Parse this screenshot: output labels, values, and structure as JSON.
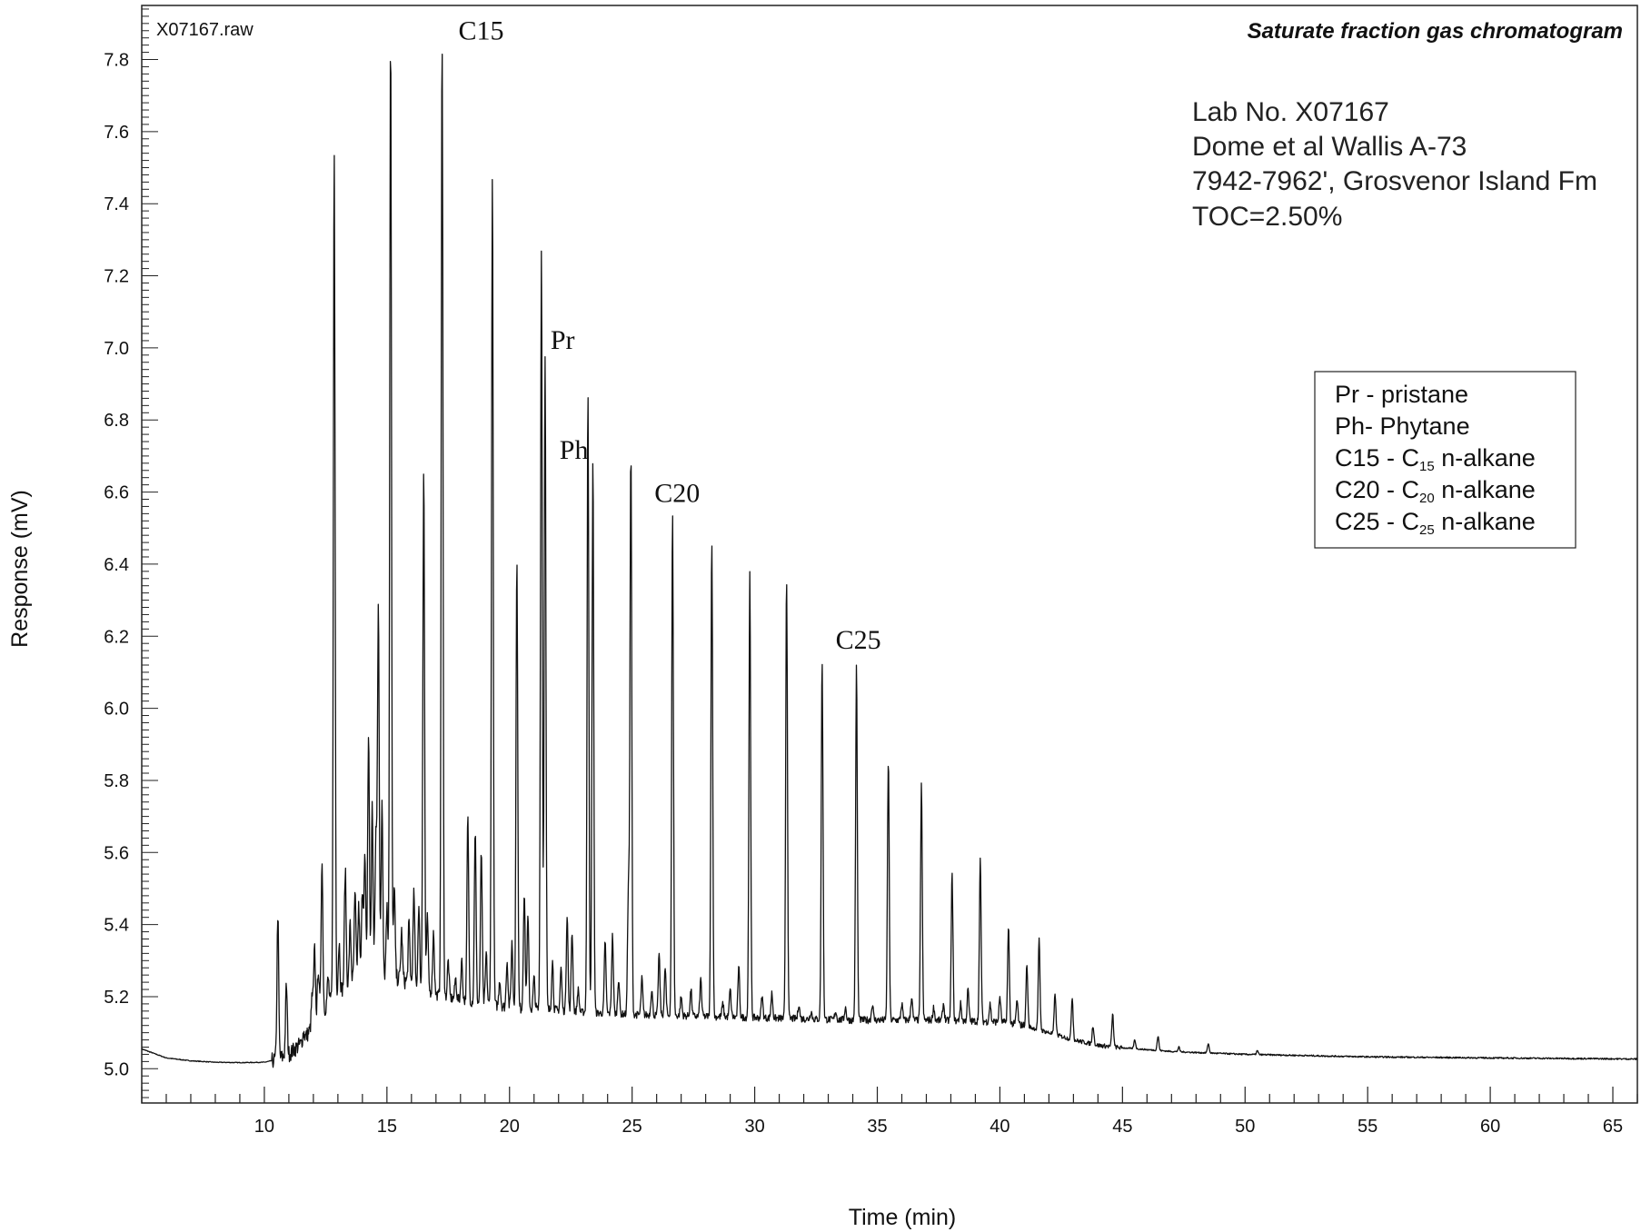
{
  "chart_data": {
    "type": "line",
    "title": "Saturate fraction gas chromatogram",
    "file_label": "X07167.raw",
    "xlabel": "Time (min)",
    "ylabel": "Response (mV)",
    "xlim": [
      5,
      66
    ],
    "ylim": [
      4.905,
      7.95
    ],
    "x_ticks": [
      10,
      15,
      20,
      25,
      30,
      35,
      40,
      45,
      50,
      55,
      60,
      65
    ],
    "y_ticks": [
      5.0,
      5.2,
      5.4,
      5.6,
      5.8,
      6.0,
      6.2,
      6.4,
      6.6,
      6.8,
      7.0,
      7.2,
      7.4,
      7.6,
      7.8
    ],
    "y_tick_labels": [
      "5.0",
      "5.2",
      "5.4",
      "5.6",
      "5.8",
      "6.0",
      "6.2",
      "6.4",
      "6.6",
      "6.8",
      "7.0",
      "7.2",
      "7.4",
      "7.6",
      "7.8"
    ],
    "baseline_points": [
      [
        5.0,
        5.055
      ],
      [
        6.0,
        5.03
      ],
      [
        7.0,
        5.022
      ],
      [
        8.0,
        5.018
      ],
      [
        9.0,
        5.017
      ],
      [
        10.0,
        5.018
      ],
      [
        10.5,
        5.025
      ],
      [
        11.0,
        5.04
      ],
      [
        11.5,
        5.07
      ],
      [
        12.0,
        5.12
      ],
      [
        12.5,
        5.17
      ],
      [
        13.0,
        5.21
      ],
      [
        13.5,
        5.24
      ],
      [
        14.0,
        5.25
      ],
      [
        14.5,
        5.255
      ],
      [
        15.0,
        5.255
      ],
      [
        15.5,
        5.25
      ],
      [
        16.0,
        5.235
      ],
      [
        16.5,
        5.22
      ],
      [
        17.0,
        5.205
      ],
      [
        18.0,
        5.19
      ],
      [
        19.0,
        5.18
      ],
      [
        20.0,
        5.17
      ],
      [
        22.0,
        5.16
      ],
      [
        25.0,
        5.15
      ],
      [
        28.0,
        5.145
      ],
      [
        31.0,
        5.14
      ],
      [
        34.0,
        5.135
      ],
      [
        37.0,
        5.135
      ],
      [
        40.0,
        5.13
      ],
      [
        41.0,
        5.12
      ],
      [
        42.0,
        5.1
      ],
      [
        43.0,
        5.08
      ],
      [
        44.0,
        5.065
      ],
      [
        45.0,
        5.058
      ],
      [
        46.0,
        5.053
      ],
      [
        47.0,
        5.048
      ],
      [
        48.0,
        5.045
      ],
      [
        50.0,
        5.04
      ],
      [
        55.0,
        5.033
      ],
      [
        60.0,
        5.03
      ],
      [
        66.0,
        5.027
      ]
    ],
    "peaks": [
      {
        "t": 10.55,
        "h": 5.43
      },
      {
        "t": 10.9,
        "h": 5.23
      },
      {
        "t": 11.6,
        "h": 5.1
      },
      {
        "t": 11.95,
        "h": 5.2
      },
      {
        "t": 12.05,
        "h": 5.33
      },
      {
        "t": 12.2,
        "h": 5.28
      },
      {
        "t": 12.35,
        "h": 5.58
      },
      {
        "t": 12.6,
        "h": 5.25
      },
      {
        "t": 12.85,
        "h": 7.54
      },
      {
        "t": 13.05,
        "h": 5.35
      },
      {
        "t": 13.3,
        "h": 5.55
      },
      {
        "t": 13.5,
        "h": 5.4
      },
      {
        "t": 13.7,
        "h": 5.48
      },
      {
        "t": 13.85,
        "h": 5.45
      },
      {
        "t": 14.0,
        "h": 5.5
      },
      {
        "t": 14.1,
        "h": 5.58
      },
      {
        "t": 14.25,
        "h": 5.93
      },
      {
        "t": 14.4,
        "h": 5.73
      },
      {
        "t": 14.55,
        "h": 5.65
      },
      {
        "t": 14.65,
        "h": 6.3
      },
      {
        "t": 14.8,
        "h": 5.75
      },
      {
        "t": 15.0,
        "h": 5.45
      },
      {
        "t": 15.15,
        "h": 7.87
      },
      {
        "t": 15.3,
        "h": 5.5
      },
      {
        "t": 15.6,
        "h": 5.38
      },
      {
        "t": 15.9,
        "h": 5.4
      },
      {
        "t": 16.1,
        "h": 5.49
      },
      {
        "t": 16.3,
        "h": 5.45
      },
      {
        "t": 16.5,
        "h": 6.67
      },
      {
        "t": 16.65,
        "h": 5.42
      },
      {
        "t": 16.9,
        "h": 5.38
      },
      {
        "t": 17.25,
        "h": 7.87
      },
      {
        "t": 17.5,
        "h": 5.3
      },
      {
        "t": 17.8,
        "h": 5.25
      },
      {
        "t": 18.05,
        "h": 5.3
      },
      {
        "t": 18.3,
        "h": 5.7
      },
      {
        "t": 18.6,
        "h": 5.66
      },
      {
        "t": 18.85,
        "h": 5.6
      },
      {
        "t": 19.05,
        "h": 5.32
      },
      {
        "t": 19.3,
        "h": 7.49
      },
      {
        "t": 19.6,
        "h": 5.25
      },
      {
        "t": 19.9,
        "h": 5.3
      },
      {
        "t": 20.1,
        "h": 5.35
      },
      {
        "t": 20.3,
        "h": 6.41
      },
      {
        "t": 20.6,
        "h": 5.49
      },
      {
        "t": 20.75,
        "h": 5.42
      },
      {
        "t": 21.0,
        "h": 5.25
      },
      {
        "t": 21.3,
        "h": 7.27
      },
      {
        "t": 21.45,
        "h": 6.99
      },
      {
        "t": 21.75,
        "h": 5.3
      },
      {
        "t": 22.1,
        "h": 5.28
      },
      {
        "t": 22.35,
        "h": 5.43
      },
      {
        "t": 22.55,
        "h": 5.38
      },
      {
        "t": 22.8,
        "h": 5.22
      },
      {
        "t": 23.2,
        "h": 6.88
      },
      {
        "t": 23.4,
        "h": 6.69
      },
      {
        "t": 23.9,
        "h": 5.35
      },
      {
        "t": 24.2,
        "h": 5.37
      },
      {
        "t": 24.45,
        "h": 5.25
      },
      {
        "t": 24.85,
        "h": 5.51
      },
      {
        "t": 24.95,
        "h": 6.71
      },
      {
        "t": 25.4,
        "h": 5.25
      },
      {
        "t": 25.8,
        "h": 5.22
      },
      {
        "t": 26.1,
        "h": 5.32
      },
      {
        "t": 26.35,
        "h": 5.28
      },
      {
        "t": 26.65,
        "h": 6.54
      },
      {
        "t": 27.0,
        "h": 5.2
      },
      {
        "t": 27.4,
        "h": 5.22
      },
      {
        "t": 27.8,
        "h": 5.25
      },
      {
        "t": 28.25,
        "h": 6.47
      },
      {
        "t": 28.7,
        "h": 5.18
      },
      {
        "t": 29.0,
        "h": 5.22
      },
      {
        "t": 29.35,
        "h": 5.28
      },
      {
        "t": 29.8,
        "h": 6.37
      },
      {
        "t": 30.3,
        "h": 5.2
      },
      {
        "t": 30.7,
        "h": 5.21
      },
      {
        "t": 31.3,
        "h": 6.37
      },
      {
        "t": 31.8,
        "h": 5.18
      },
      {
        "t": 32.3,
        "h": 5.16
      },
      {
        "t": 32.75,
        "h": 6.14
      },
      {
        "t": 33.3,
        "h": 5.16
      },
      {
        "t": 33.7,
        "h": 5.17
      },
      {
        "t": 34.15,
        "h": 6.12
      },
      {
        "t": 34.8,
        "h": 5.18
      },
      {
        "t": 35.45,
        "h": 5.86
      },
      {
        "t": 36.0,
        "h": 5.18
      },
      {
        "t": 36.4,
        "h": 5.2
      },
      {
        "t": 36.8,
        "h": 5.79
      },
      {
        "t": 37.3,
        "h": 5.17
      },
      {
        "t": 37.7,
        "h": 5.18
      },
      {
        "t": 38.05,
        "h": 5.54
      },
      {
        "t": 38.4,
        "h": 5.18
      },
      {
        "t": 38.7,
        "h": 5.22
      },
      {
        "t": 39.2,
        "h": 5.58
      },
      {
        "t": 39.6,
        "h": 5.18
      },
      {
        "t": 40.0,
        "h": 5.2
      },
      {
        "t": 40.35,
        "h": 5.39
      },
      {
        "t": 40.7,
        "h": 5.19
      },
      {
        "t": 41.1,
        "h": 5.29
      },
      {
        "t": 41.6,
        "h": 5.36
      },
      {
        "t": 42.25,
        "h": 5.21
      },
      {
        "t": 42.95,
        "h": 5.2
      },
      {
        "t": 43.8,
        "h": 5.12
      },
      {
        "t": 44.6,
        "h": 5.15
      },
      {
        "t": 45.5,
        "h": 5.08
      },
      {
        "t": 46.45,
        "h": 5.09
      },
      {
        "t": 47.3,
        "h": 5.06
      },
      {
        "t": 48.5,
        "h": 5.07
      },
      {
        "t": 50.5,
        "h": 5.05
      }
    ],
    "peak_labels": [
      {
        "text": "C15",
        "t": 17.25,
        "h": 7.87
      },
      {
        "text": "Pr",
        "t": 21.45,
        "h": 6.99
      },
      {
        "text": "Ph",
        "t": 23.4,
        "h": 6.69
      },
      {
        "text": "C20",
        "t": 26.65,
        "h": 6.54
      },
      {
        "text": "C25",
        "t": 34.15,
        "h": 6.12
      }
    ]
  },
  "sample_info": {
    "lab_no": "Lab No. X07167",
    "well": "Dome et al Wallis A-73",
    "depth_fm": "7942-7962', Grosvenor Island Fm",
    "toc": "TOC=2.50%"
  },
  "legend": {
    "placement": "right",
    "entries": [
      {
        "prefix": "Pr - pristane",
        "sub": "",
        "suffix": ""
      },
      {
        "prefix": "Ph- Phytane",
        "sub": "",
        "suffix": ""
      },
      {
        "prefix": "C15 - C",
        "sub": "15",
        "suffix": " n-alkane"
      },
      {
        "prefix": "C20 - C",
        "sub": "20",
        "suffix": " n-alkane"
      },
      {
        "prefix": "C25 - C",
        "sub": "25",
        "suffix": " n-alkane"
      }
    ]
  }
}
